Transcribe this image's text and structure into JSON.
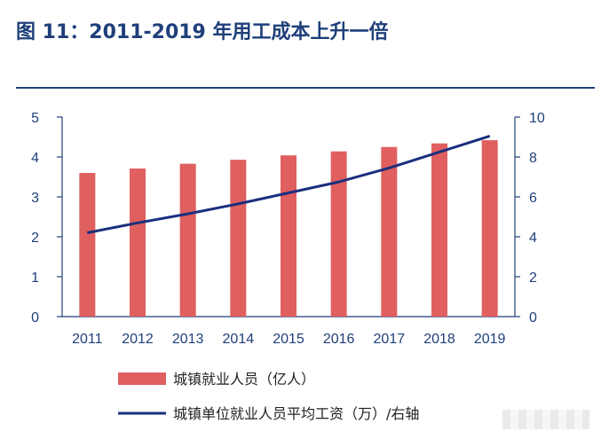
{
  "figure_title": "图 11：2011-2019 年用工成本上升一倍",
  "colors": {
    "bar": "#e05f5f",
    "line": "#1a2f7e",
    "axis": "#1f3f7a"
  },
  "chart_data": {
    "type": "bar",
    "categories": [
      "2011",
      "2012",
      "2013",
      "2014",
      "2015",
      "2016",
      "2017",
      "2018",
      "2019"
    ],
    "series": [
      {
        "name": "城镇就业人员（亿人）",
        "type": "bar",
        "axis": "left",
        "values": [
          3.6,
          3.71,
          3.83,
          3.93,
          4.04,
          4.14,
          4.25,
          4.34,
          4.42
        ]
      },
      {
        "name": "城镇单位就业人员平均工资（万）/右轴",
        "type": "line",
        "axis": "right",
        "values": [
          4.2,
          4.7,
          5.15,
          5.65,
          6.2,
          6.75,
          7.45,
          8.25,
          9.05
        ]
      }
    ],
    "y_left": {
      "ylim": [
        0,
        5
      ],
      "ticks": [
        "0",
        "1",
        "2",
        "3",
        "4",
        "5"
      ]
    },
    "y_right": {
      "ylim": [
        0,
        10
      ],
      "ticks": [
        "0",
        "2",
        "4",
        "6",
        "8",
        "10"
      ]
    },
    "legend_position": "bottom",
    "grid": false
  }
}
